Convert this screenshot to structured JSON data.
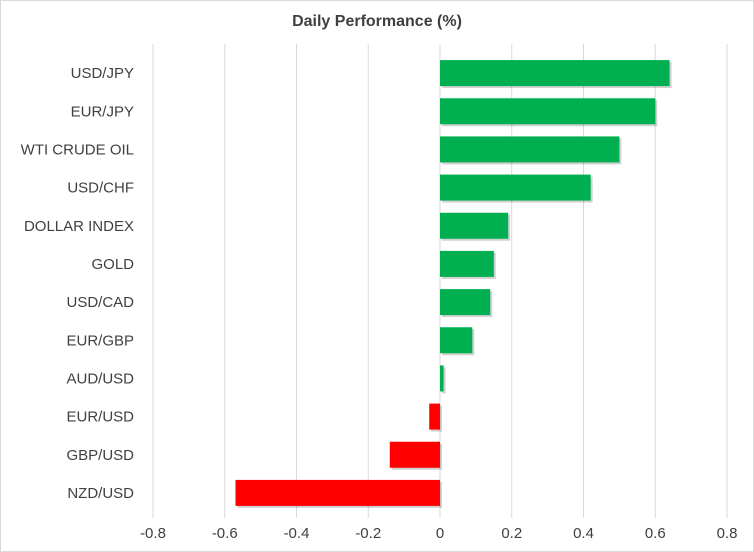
{
  "chart_data": {
    "type": "bar",
    "orientation": "horizontal",
    "title": "Daily Performance (%)",
    "xlabel": "",
    "ylabel": "",
    "xlim": [
      -0.8,
      0.8
    ],
    "xticks": [
      "-0.8",
      "-0.6",
      "-0.4",
      "-0.2",
      "0",
      "0.2",
      "0.4",
      "0.6",
      "0.8"
    ],
    "grid": true,
    "categories": [
      "USD/JPY",
      "EUR/JPY",
      "WTI CRUDE OIL",
      "USD/CHF",
      "DOLLAR INDEX",
      "GOLD",
      "USD/CAD",
      "EUR/GBP",
      "AUD/USD",
      "EUR/USD",
      "GBP/USD",
      "NZD/USD"
    ],
    "values": [
      0.64,
      0.6,
      0.5,
      0.42,
      0.19,
      0.15,
      0.14,
      0.09,
      0.01,
      -0.03,
      -0.14,
      -0.57
    ],
    "colors": {
      "positive": "#00b050",
      "negative": "#ff0000",
      "grid": "#d9d9d9",
      "text": "#404040"
    }
  }
}
